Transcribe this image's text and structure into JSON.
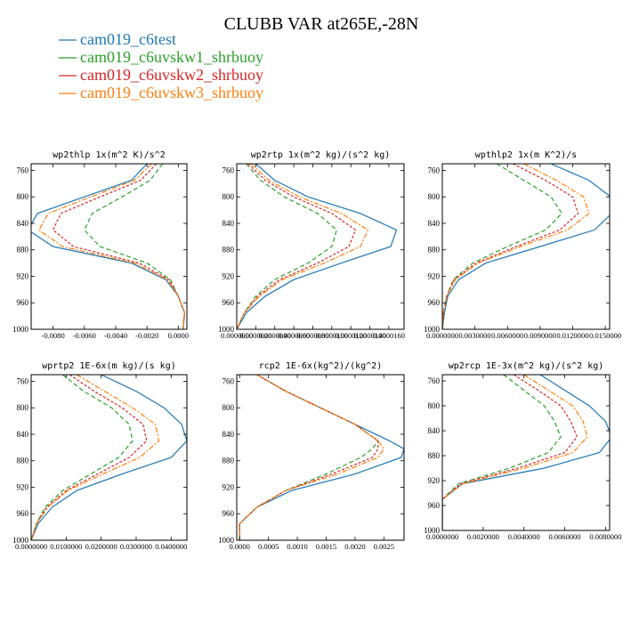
{
  "figure": {
    "title": "CLUBB VAR at265E,-28N",
    "legend": [
      {
        "label": "cam019_c6test",
        "color": "#1f77b4"
      },
      {
        "label": "cam019_c6uvskw1_shrbuoy",
        "color": "#2ca02c"
      },
      {
        "label": "cam019_c6uvskw2_shrbuoy",
        "color": "#d62728"
      },
      {
        "label": "cam019_c6uvskw3_shrbuoy",
        "color": "#ff7f0e"
      }
    ]
  },
  "chart_data": [
    {
      "type": "line",
      "title": "wp2thlp  1x(m^2 K)/s^2",
      "xlim": [
        -0.0094,
        0.00055
      ],
      "ylim": [
        1000,
        750
      ],
      "yticks": [
        760,
        800,
        840,
        880,
        920,
        960,
        1000
      ],
      "xticks": [
        -0.008,
        -0.006,
        -0.004,
        -0.002,
        0.0
      ],
      "xtick_labels": [
        "-0.0080",
        "-0.0060",
        "-0.0040",
        "-0.0020",
        "0.0000"
      ],
      "y": [
        750,
        775,
        800,
        825,
        850,
        875,
        900,
        925,
        950,
        975,
        1000
      ],
      "series": [
        {
          "name": "cam019_c6test",
          "values": [
            -0.002,
            -0.003,
            -0.006,
            -0.009,
            -0.0096,
            -0.008,
            -0.003,
            -0.0008,
            0.0,
            0.0004,
            0.0003
          ]
        },
        {
          "name": "cam019_c6uvskw1_shrbuoy",
          "values": [
            -0.001,
            -0.0018,
            -0.0036,
            -0.0055,
            -0.006,
            -0.005,
            -0.002,
            -0.0005,
            0.0,
            0.0004,
            0.0003
          ]
        },
        {
          "name": "cam019_c6uvskw2_shrbuoy",
          "values": [
            -0.0014,
            -0.0024,
            -0.005,
            -0.0075,
            -0.008,
            -0.0067,
            -0.0025,
            -0.0006,
            0.0,
            0.0004,
            0.0003
          ]
        },
        {
          "name": "cam019_c6uvskw3_shrbuoy",
          "values": [
            -0.0017,
            -0.0028,
            -0.0056,
            -0.0083,
            -0.0089,
            -0.0074,
            -0.0028,
            -0.0007,
            0.0,
            0.0004,
            0.0003
          ]
        }
      ]
    },
    {
      "type": "line",
      "title": "wp2rtp  1x(m^2 kg)/(s^2 kg)",
      "xlim": [
        0.0,
        1.76e-05
      ],
      "ylim": [
        1000,
        750
      ],
      "yticks": [
        760,
        800,
        840,
        880,
        920,
        960,
        1000
      ],
      "xticks": [
        0.0,
        2e-06,
        4e-06,
        6e-06,
        8e-06,
        1e-05,
        1.2e-05,
        1.4e-05,
        1.6e-05
      ],
      "xtick_labels": [
        "0.0000000",
        "0.0000020",
        "0.0000040",
        "0.0000060",
        "0.0000080",
        "0.0000100",
        "0.0000120",
        "0.0000140",
        "0.0000160"
      ],
      "y": [
        750,
        775,
        800,
        825,
        850,
        875,
        900,
        925,
        950,
        975,
        1000
      ],
      "series": [
        {
          "name": "cam019_c6test",
          "values": [
            2e-06,
            4e-06,
            7.5e-06,
            1.3e-05,
            1.68e-05,
            1.62e-05,
            1.1e-05,
            6e-06,
            3e-06,
            1e-06,
            0.0
          ]
        },
        {
          "name": "cam019_c6uvskw1_shrbuoy",
          "values": [
            1e-06,
            2.5e-06,
            5e-06,
            8.5e-06,
            1.05e-05,
            1e-05,
            7.5e-06,
            4e-06,
            2e-06,
            8e-07,
            0.0
          ]
        },
        {
          "name": "cam019_c6uvskw2_shrbuoy",
          "values": [
            1.2e-06,
            3e-06,
            6e-06,
            1e-05,
            1.25e-05,
            1.18e-05,
            8.5e-06,
            4.5e-06,
            2.2e-06,
            8e-07,
            0.0
          ]
        },
        {
          "name": "cam019_c6uvskw3_shrbuoy",
          "values": [
            1.5e-06,
            3.4e-06,
            6.6e-06,
            1.1e-05,
            1.38e-05,
            1.3e-05,
            9.2e-06,
            4.8e-06,
            2.4e-06,
            8e-07,
            0.0
          ]
        }
      ]
    },
    {
      "type": "line",
      "title": "wpthlp2  1x(m K^2)/s",
      "xlim": [
        0.0,
        0.0154
      ],
      "ylim": [
        1000,
        750
      ],
      "yticks": [
        760,
        800,
        840,
        880,
        920,
        960,
        1000
      ],
      "xticks": [
        0.0,
        0.003,
        0.006,
        0.009,
        0.012,
        0.015
      ],
      "xtick_labels": [
        "0.0000000",
        "0.0030000",
        "0.0060000",
        "0.0090000",
        "0.0120000",
        "0.0150000"
      ],
      "y": [
        750,
        775,
        800,
        825,
        850,
        875,
        900,
        925,
        950,
        975,
        1000
      ],
      "series": [
        {
          "name": "cam019_c6test",
          "values": [
            0.01,
            0.0135,
            0.0155,
            0.0156,
            0.014,
            0.009,
            0.004,
            0.0015,
            0.0005,
            0.0002,
            0.0
          ]
        },
        {
          "name": "cam019_c6uvskw1_shrbuoy",
          "values": [
            0.005,
            0.0075,
            0.01,
            0.011,
            0.0095,
            0.006,
            0.0028,
            0.001,
            0.0004,
            0.0001,
            0.0
          ]
        },
        {
          "name": "cam019_c6uvskw2_shrbuoy",
          "values": [
            0.0065,
            0.0095,
            0.012,
            0.0125,
            0.0108,
            0.0068,
            0.0031,
            0.0011,
            0.0004,
            0.0001,
            0.0
          ]
        },
        {
          "name": "cam019_c6uvskw3_shrbuoy",
          "values": [
            0.0075,
            0.0105,
            0.013,
            0.0135,
            0.0115,
            0.0072,
            0.0033,
            0.0012,
            0.0004,
            0.0001,
            0.0
          ]
        }
      ]
    },
    {
      "type": "line",
      "title": "wprtp2  1E-6x(m kg)/(s kg)",
      "xlim": [
        0.0,
        0.0445
      ],
      "ylim": [
        1000,
        750
      ],
      "yticks": [
        760,
        800,
        840,
        880,
        920,
        960,
        1000
      ],
      "xticks": [
        0.0,
        0.01,
        0.02,
        0.03,
        0.04
      ],
      "xtick_labels": [
        "0.0000000",
        "0.0100000",
        "0.0200000",
        "0.0300000",
        "0.0400000"
      ],
      "y": [
        750,
        775,
        800,
        825,
        850,
        875,
        900,
        925,
        950,
        975,
        1000
      ],
      "series": [
        {
          "name": "cam019_c6test",
          "values": [
            0.02,
            0.03,
            0.038,
            0.043,
            0.0445,
            0.04,
            0.026,
            0.013,
            0.006,
            0.002,
            0.0
          ]
        },
        {
          "name": "cam019_c6uvskw1_shrbuoy",
          "values": [
            0.009,
            0.015,
            0.023,
            0.028,
            0.029,
            0.025,
            0.017,
            0.009,
            0.004,
            0.0015,
            0.0
          ]
        },
        {
          "name": "cam019_c6uvskw2_shrbuoy",
          "values": [
            0.011,
            0.018,
            0.026,
            0.032,
            0.033,
            0.028,
            0.019,
            0.01,
            0.0045,
            0.0015,
            0.0
          ]
        },
        {
          "name": "cam019_c6uvskw3_shrbuoy",
          "values": [
            0.013,
            0.021,
            0.029,
            0.0355,
            0.0365,
            0.031,
            0.0205,
            0.0105,
            0.0048,
            0.0016,
            0.0
          ]
        }
      ]
    },
    {
      "type": "line",
      "title": "rcp2  1E-6x(kg^2)/(kg^2)",
      "xlim": [
        -5e-05,
        0.00285
      ],
      "ylim": [
        1000,
        750
      ],
      "yticks": [
        760,
        800,
        840,
        880,
        920,
        960,
        1000
      ],
      "xticks": [
        0.0,
        0.0005,
        0.001,
        0.0015,
        0.002,
        0.0025
      ],
      "xtick_labels": [
        "0.0000",
        "0.0005",
        "0.0010",
        "0.0015",
        "0.0020",
        "0.0025"
      ],
      "y": [
        750,
        775,
        800,
        825,
        850,
        862,
        875,
        900,
        925,
        950,
        975,
        1000
      ],
      "series": [
        {
          "name": "cam019_c6test",
          "values": [
            0.0003,
            0.0008,
            0.0014,
            0.002,
            0.0026,
            0.00285,
            0.0028,
            0.002,
            0.0009,
            0.0003,
            0.0,
            0.0
          ]
        },
        {
          "name": "cam019_c6uvskw1_shrbuoy",
          "values": [
            0.0003,
            0.0008,
            0.0014,
            0.002,
            0.0024,
            0.0023,
            0.0021,
            0.0015,
            0.0008,
            0.0003,
            0.0,
            0.0
          ]
        },
        {
          "name": "cam019_c6uvskw2_shrbuoy",
          "values": [
            0.0003,
            0.0008,
            0.0014,
            0.002,
            0.0024,
            0.0024,
            0.0023,
            0.0016,
            0.0008,
            0.0003,
            0.0,
            0.0
          ]
        },
        {
          "name": "cam019_c6uvskw3_shrbuoy",
          "values": [
            0.0003,
            0.0008,
            0.0014,
            0.002,
            0.0024,
            0.0025,
            0.0024,
            0.0017,
            0.0008,
            0.0003,
            0.0,
            0.0
          ]
        }
      ]
    },
    {
      "type": "line",
      "title": "wp2rcp  1E-3x(m^2 kg)/(s^2 kg)",
      "xlim": [
        0.0,
        0.0082
      ],
      "ylim": [
        1000,
        750
      ],
      "yticks": [
        760,
        800,
        840,
        880,
        920,
        960,
        1000
      ],
      "xticks": [
        0.0,
        0.002,
        0.004,
        0.006,
        0.008
      ],
      "xtick_labels": [
        "0.0000000",
        "0.0020000",
        "0.0040000",
        "0.0060000",
        "0.0080000"
      ],
      "y": [
        750,
        775,
        800,
        825,
        850,
        875,
        900,
        925,
        950,
        975,
        1000
      ],
      "series": [
        {
          "name": "cam019_c6test",
          "values": [
            0.0048,
            0.006,
            0.0072,
            0.008,
            0.0083,
            0.0077,
            0.005,
            0.001,
            0.0,
            0.0,
            0.0
          ]
        },
        {
          "name": "cam019_c6uvskw1_shrbuoy",
          "values": [
            0.003,
            0.004,
            0.005,
            0.0055,
            0.0058,
            0.0052,
            0.0033,
            0.0008,
            0.0,
            0.0,
            0.0
          ]
        },
        {
          "name": "cam019_c6uvskw2_shrbuoy",
          "values": [
            0.0035,
            0.0047,
            0.0058,
            0.0063,
            0.0066,
            0.006,
            0.0037,
            0.0009,
            0.0,
            0.0,
            0.0
          ]
        },
        {
          "name": "cam019_c6uvskw3_shrbuoy",
          "values": [
            0.004,
            0.0052,
            0.0064,
            0.0069,
            0.0071,
            0.0064,
            0.004,
            0.001,
            0.0,
            0.0,
            0.0
          ]
        }
      ]
    }
  ]
}
